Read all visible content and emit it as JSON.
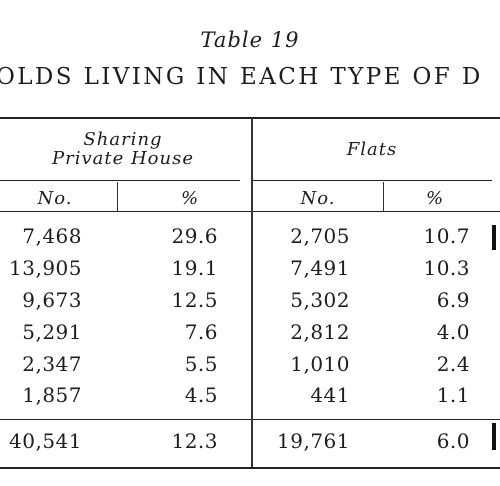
{
  "table": {
    "caption": "Table 19",
    "title": "OLDS LIVING IN EACH TYPE OF D",
    "groups": [
      {
        "line1": "Sharing",
        "line2": "Private House"
      },
      {
        "line1": "Flats"
      }
    ],
    "subheaders": [
      "No.",
      "%",
      "No.",
      "%"
    ],
    "rows": [
      [
        "7,468",
        "29.6",
        "2,705",
        "10.7"
      ],
      [
        "13,905",
        "19.1",
        "7,491",
        "10.3"
      ],
      [
        "9,673",
        "12.5",
        "5,302",
        "6.9"
      ],
      [
        "5,291",
        "7.6",
        "2,812",
        "4.0"
      ],
      [
        "2,347",
        "5.5",
        "1,010",
        "2.4"
      ],
      [
        "1,857",
        "4.5",
        "441",
        "1.1"
      ]
    ],
    "total": [
      "40,541",
      "12.3",
      "19,761",
      "6.0"
    ]
  }
}
